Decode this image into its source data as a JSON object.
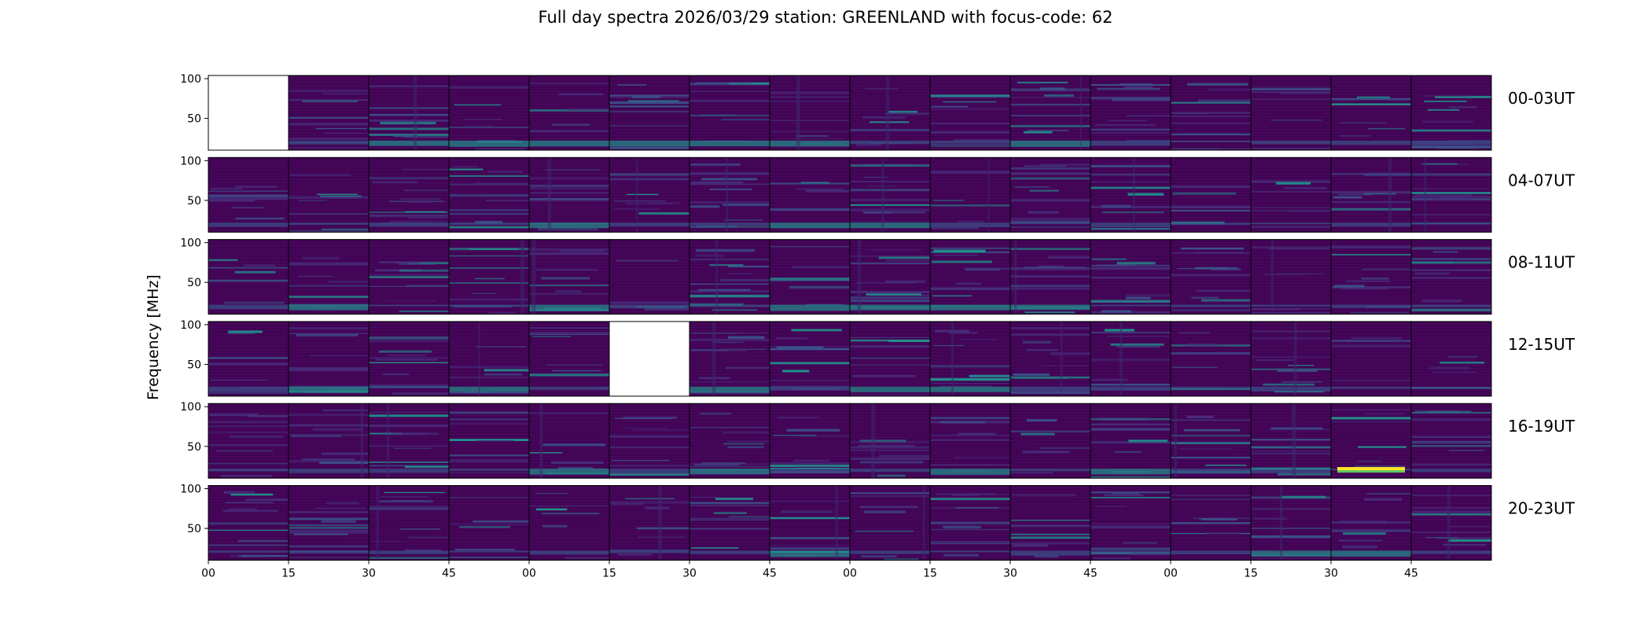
{
  "chart_data": {
    "type": "heatmap",
    "title": "Full day spectra 2026/03/29 station: GREENLAND with focus-code: 62",
    "ylabel": "Frequency [MHz]",
    "xlabel": "",
    "ylim": [
      10,
      104
    ],
    "yticks": [
      100,
      50
    ],
    "xtick_labels": [
      "00",
      "15",
      "30",
      "45",
      "00",
      "15",
      "30",
      "45",
      "00",
      "15",
      "30",
      "45",
      "00",
      "15",
      "30",
      "45"
    ],
    "row_labels": [
      "00-03UT",
      "04-07UT",
      "08-11UT",
      "12-15UT",
      "16-19UT",
      "20-23UT"
    ],
    "missing_panels": [
      [
        0,
        0
      ],
      [
        3,
        5
      ]
    ],
    "bright_panels": [
      [
        4,
        14
      ]
    ],
    "colormap": [
      "#440154",
      "#3b528b",
      "#21918c",
      "#5ec962",
      "#fde725"
    ]
  }
}
